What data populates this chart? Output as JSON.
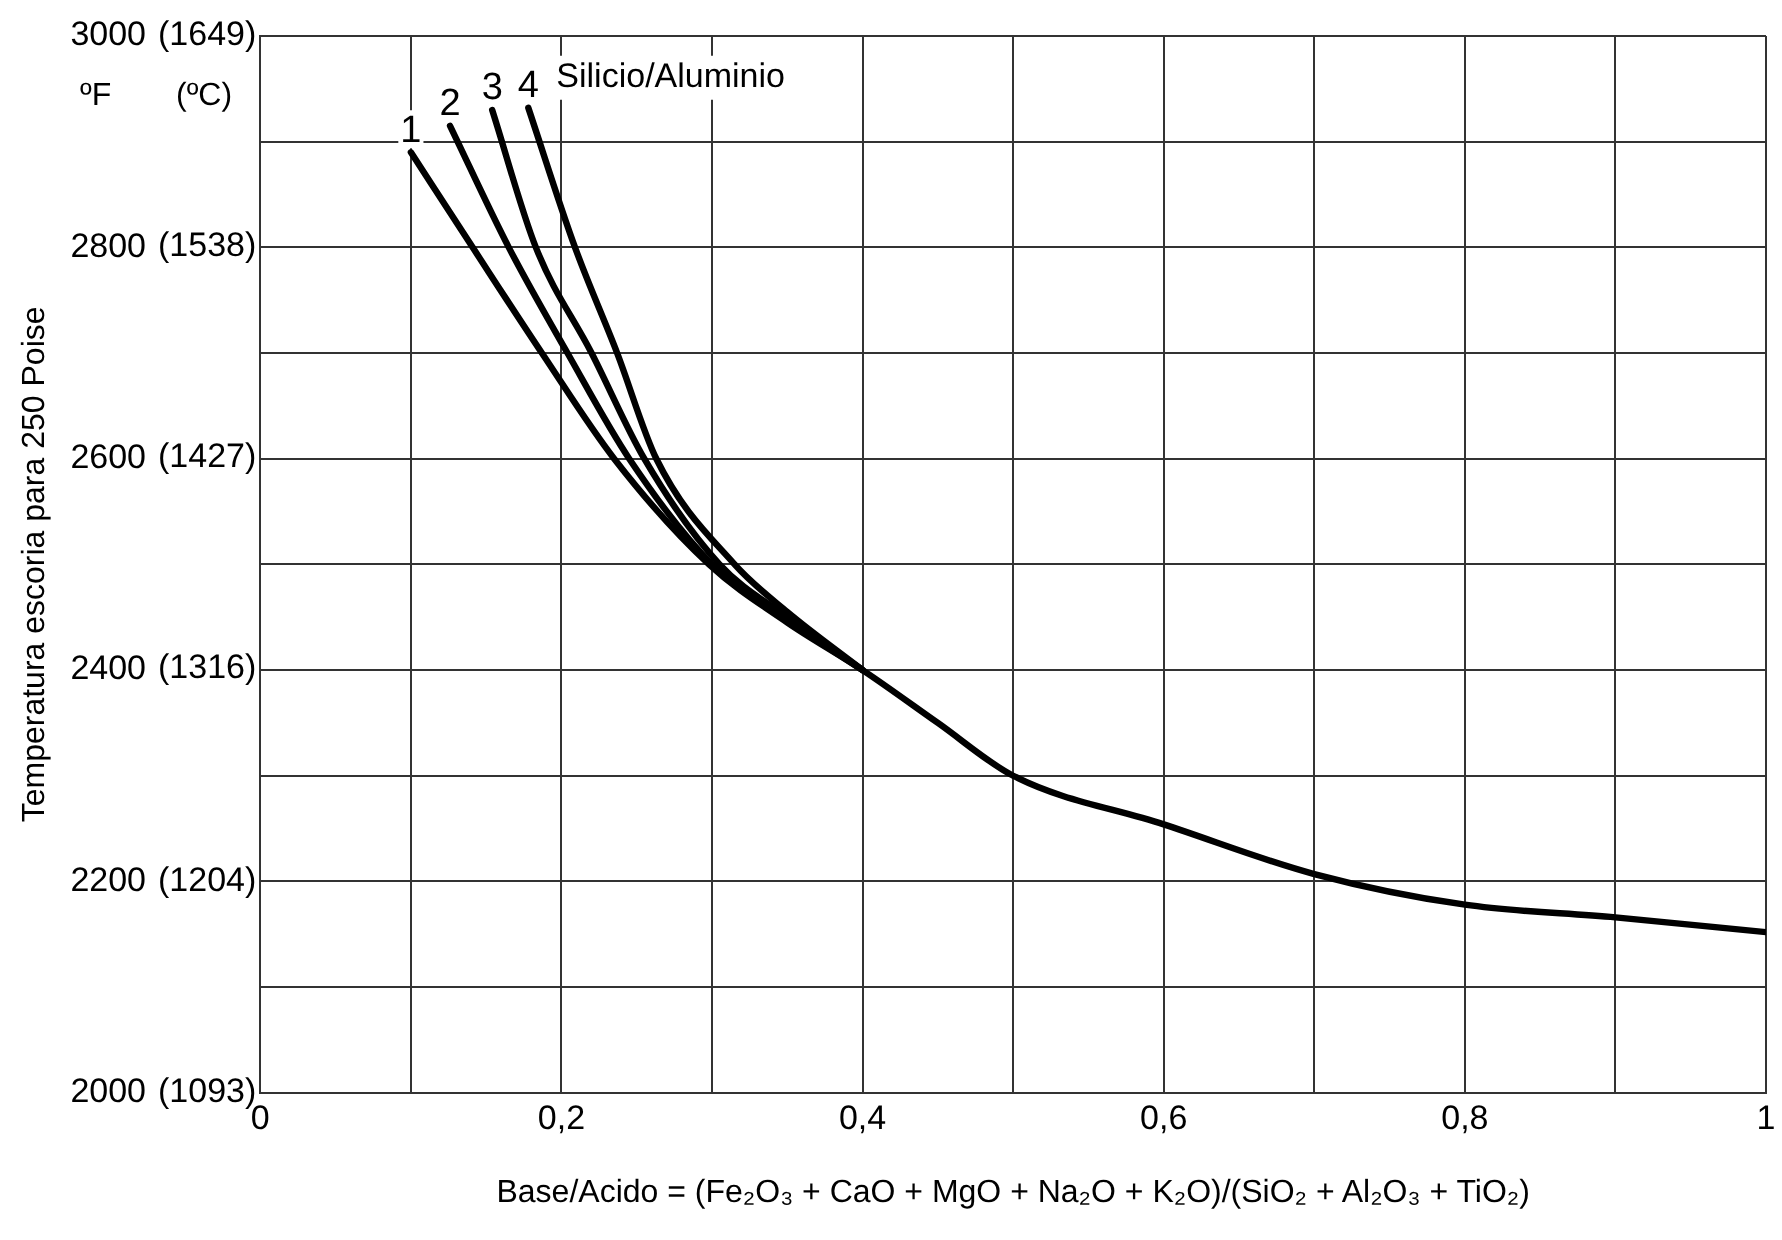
{
  "chart_data": {
    "type": "line",
    "ylabel": "Temperatura escoria para 250 Poise",
    "xlabel": "Base/Acido = (Fe₂O₃ + CaO + MgO + Na₂O + K₂O)/(SiO₂ + Al₂O₃ + TiO₂)",
    "legend_title": "Silicio/Aluminio",
    "annotations": [
      "ºF",
      "(ºC)"
    ],
    "xlim": [
      0,
      1
    ],
    "ylim": [
      2000,
      3000
    ],
    "xticks": [
      0,
      {
        "value": 0.1,
        "label": null
      },
      {
        "value": 0.2,
        "label": "0,2"
      },
      {
        "value": 0.3,
        "label": null
      },
      {
        "value": 0.4,
        "label": "0,4"
      },
      {
        "value": 0.5,
        "label": null
      },
      {
        "value": 0.6,
        "label": "0,6"
      },
      {
        "value": 0.7,
        "label": null
      },
      {
        "value": 0.8,
        "label": "0,8"
      },
      {
        "value": 0.9,
        "label": null
      },
      1
    ],
    "yticks": [
      2000,
      {
        "value": 2100,
        "label": null
      },
      2200,
      {
        "value": 2300,
        "label": null
      },
      2400,
      {
        "value": 2500,
        "label": null
      },
      2600,
      {
        "value": 2700,
        "label": null
      },
      2800,
      {
        "value": 2900,
        "label": null
      },
      3000
    ],
    "y2lim": [
      1093,
      1649
    ],
    "y2ticks": [
      {
        "value": 1093,
        "label": "(1093)"
      },
      {
        "value": 1204,
        "label": "(1204)"
      },
      {
        "value": 1316,
        "label": "(1316)"
      },
      {
        "value": 1427,
        "label": "(1427)"
      },
      {
        "value": 1538,
        "label": "(1538)"
      },
      {
        "value": 1649,
        "label": "(1649)"
      }
    ],
    "grid": true,
    "legend": false,
    "marker": "none",
    "line_style": "solid",
    "series": [
      {
        "name": "1",
        "color": "#000000",
        "x": [
          0.1,
          0.141,
          0.187,
          0.235,
          0.298,
          0.35,
          0.4,
          0.45,
          0.5,
          0.6,
          0.7,
          0.8,
          0.9,
          1
        ],
        "values": [
          2890,
          2800,
          2700,
          2600,
          2500,
          2445,
          2400,
          2350,
          2300,
          2254,
          2207,
          2178,
          2166,
          2152
        ]
      },
      {
        "name": "2",
        "color": "#000000",
        "x": [
          0.126,
          0.165,
          0.204,
          0.245,
          0.3,
          0.35,
          0.4
        ],
        "values": [
          2915,
          2800,
          2700,
          2600,
          2500,
          2447,
          2400
        ]
      },
      {
        "name": "3",
        "color": "#000000",
        "x": [
          0.154,
          0.183,
          0.22,
          0.255,
          0.305,
          0.35,
          0.4
        ],
        "values": [
          2930,
          2800,
          2700,
          2600,
          2500,
          2450,
          2400
        ]
      },
      {
        "name": "4",
        "color": "#000000",
        "x": [
          0.178,
          0.209,
          0.237,
          0.263,
          0.315,
          0.35,
          0.4
        ],
        "values": [
          2932,
          2800,
          2700,
          2600,
          2500,
          2455,
          2400
        ]
      }
    ]
  }
}
